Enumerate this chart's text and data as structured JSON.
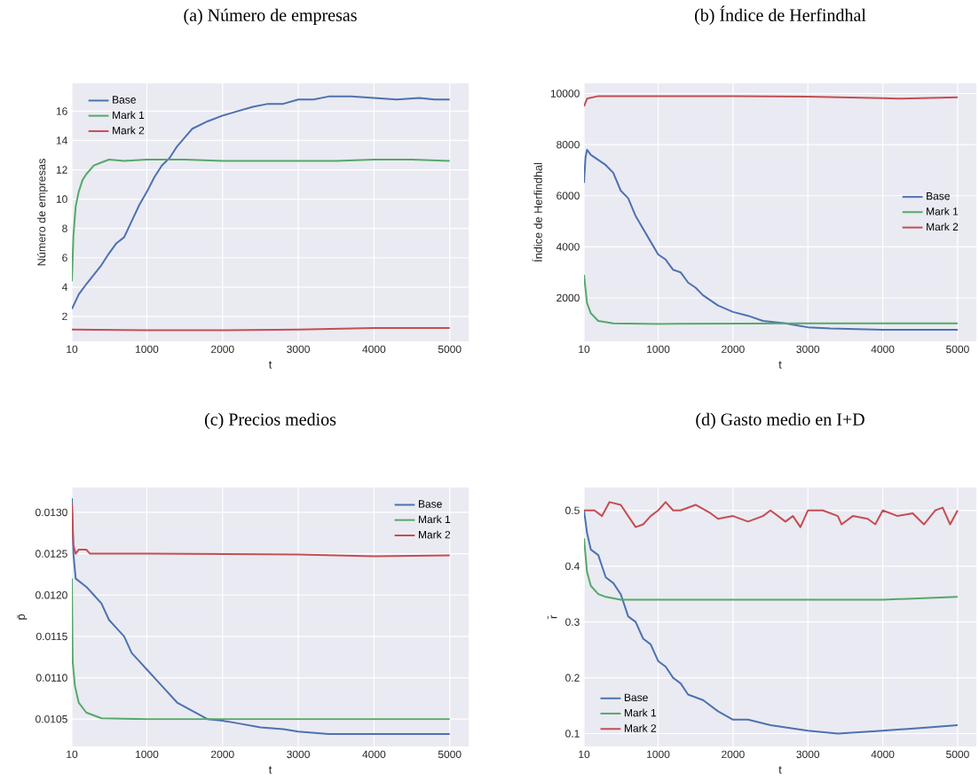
{
  "chart_data": [
    {
      "type": "line",
      "title": "(a) Número de empresas",
      "xlabel": "t",
      "ylabel": "Número de empresas",
      "xlim": [
        10,
        5250
      ],
      "ylim": [
        0.3,
        17.9
      ],
      "xticks": [
        10,
        1000,
        2000,
        3000,
        4000,
        5000
      ],
      "yticks": [
        2,
        4,
        6,
        8,
        10,
        12,
        14,
        16
      ],
      "grid": true,
      "legend": "top left",
      "series": [
        {
          "name": "Base",
          "color": "#4c72b0",
          "x": [
            10,
            100,
            200,
            400,
            500,
            600,
            700,
            800,
            900,
            1000,
            1100,
            1200,
            1300,
            1400,
            1500,
            1600,
            1800,
            2000,
            2200,
            2400,
            2600,
            2800,
            3000,
            3200,
            3400,
            3700,
            4000,
            4300,
            4600,
            4800,
            5000
          ],
          "values": [
            2.5,
            3.5,
            4.2,
            5.5,
            6.3,
            7.0,
            7.4,
            8.5,
            9.6,
            10.5,
            11.5,
            12.3,
            12.8,
            13.6,
            14.2,
            14.8,
            15.3,
            15.7,
            16.0,
            16.3,
            16.5,
            16.5,
            16.8,
            16.8,
            17.0,
            17.0,
            16.9,
            16.8,
            16.9,
            16.8,
            16.8
          ]
        },
        {
          "name": "Mark 1",
          "color": "#55a868",
          "x": [
            10,
            30,
            60,
            100,
            150,
            200,
            300,
            400,
            500,
            700,
            1000,
            1500,
            2000,
            2500,
            3000,
            3500,
            4000,
            4500,
            5000
          ],
          "values": [
            4.4,
            7.5,
            9.5,
            10.5,
            11.3,
            11.7,
            12.3,
            12.5,
            12.7,
            12.6,
            12.7,
            12.7,
            12.6,
            12.6,
            12.6,
            12.6,
            12.7,
            12.7,
            12.6
          ]
        },
        {
          "name": "Mark 2",
          "color": "#c44e52",
          "x": [
            10,
            1000,
            2000,
            3000,
            4000,
            4500,
            5000
          ],
          "values": [
            1.1,
            1.05,
            1.05,
            1.1,
            1.2,
            1.2,
            1.2
          ]
        }
      ]
    },
    {
      "type": "line",
      "title": "(b) Índice de Herfindhal",
      "xlabel": "t",
      "ylabel": "Índice de Herfindhal",
      "xlim": [
        10,
        5250
      ],
      "ylim": [
        300,
        10400
      ],
      "xticks": [
        10,
        1000,
        2000,
        3000,
        4000,
        5000
      ],
      "yticks": [
        2000,
        4000,
        6000,
        8000,
        10000
      ],
      "grid": true,
      "legend": "right",
      "series": [
        {
          "name": "Base",
          "color": "#4c72b0",
          "x": [
            10,
            30,
            50,
            100,
            200,
            300,
            400,
            500,
            600,
            700,
            800,
            900,
            1000,
            1100,
            1200,
            1300,
            1400,
            1500,
            1600,
            1700,
            1800,
            2000,
            2200,
            2400,
            2700,
            2900,
            3000,
            3300,
            4000,
            5000
          ],
          "values": [
            6500,
            7500,
            7800,
            7600,
            7400,
            7200,
            6900,
            6200,
            5900,
            5200,
            4700,
            4200,
            3700,
            3500,
            3100,
            3000,
            2600,
            2400,
            2100,
            1900,
            1700,
            1450,
            1300,
            1100,
            1000,
            900,
            850,
            800,
            750,
            750
          ]
        },
        {
          "name": "Mark 1",
          "color": "#55a868",
          "x": [
            10,
            50,
            100,
            200,
            400,
            1000,
            3000,
            5000
          ],
          "values": [
            2900,
            1800,
            1400,
            1100,
            1000,
            980,
            1000,
            1000
          ]
        },
        {
          "name": "Mark 2",
          "color": "#c44e52",
          "x": [
            10,
            50,
            200,
            1000,
            2000,
            3000,
            4000,
            4200,
            5000
          ],
          "values": [
            9500,
            9800,
            9900,
            9900,
            9900,
            9880,
            9820,
            9800,
            9850
          ]
        }
      ]
    },
    {
      "type": "line",
      "title": "(c) Precios medios",
      "xlabel": "t",
      "ylabel": "p̄",
      "xlim": [
        10,
        5250
      ],
      "ylim": [
        0.01017,
        0.0133
      ],
      "xticks": [
        10,
        1000,
        2000,
        3000,
        4000,
        5000
      ],
      "yticks": [
        0.0105,
        {
          "value": 0.011,
          "label": "0.0110"
        },
        0.0115,
        {
          "value": 0.012,
          "label": "0.0120"
        },
        0.0125,
        {
          "value": 0.013,
          "label": "0.0130"
        }
      ],
      "grid": true,
      "legend": "top right",
      "series": [
        {
          "name": "Base",
          "color": "#4c72b0",
          "x": [
            10,
            30,
            60,
            200,
            300,
            400,
            500,
            600,
            700,
            800,
            900,
            1000,
            1200,
            1400,
            1600,
            1800,
            2000,
            2200,
            2500,
            2800,
            3000,
            3400,
            5000
          ],
          "values": [
            0.01317,
            0.0125,
            0.0122,
            0.0121,
            0.012,
            0.0119,
            0.0117,
            0.0116,
            0.0115,
            0.0113,
            0.0112,
            0.0111,
            0.0109,
            0.0107,
            0.0106,
            0.0105,
            0.01048,
            0.01045,
            0.0104,
            0.01038,
            0.01035,
            0.01032,
            0.01032
          ]
        },
        {
          "name": "Mark 1",
          "color": "#55a868",
          "x": [
            10,
            20,
            50,
            100,
            200,
            400,
            1000,
            5000
          ],
          "values": [
            0.0122,
            0.0112,
            0.0109,
            0.0107,
            0.01058,
            0.01051,
            0.0105,
            0.0105
          ]
        },
        {
          "name": "Mark 2",
          "color": "#c44e52",
          "x": [
            10,
            30,
            60,
            100,
            200,
            250,
            1000,
            3000,
            4000,
            5000
          ],
          "values": [
            0.0131,
            0.0126,
            0.0125,
            0.01255,
            0.01255,
            0.0125,
            0.0125,
            0.01249,
            0.01247,
            0.01248
          ]
        }
      ]
    },
    {
      "type": "line",
      "title": "(d) Gasto medio en I+D",
      "xlabel": "t",
      "ylabel": "r̄",
      "xlim": [
        10,
        5250
      ],
      "ylim": [
        0.077,
        0.541
      ],
      "xticks": [
        10,
        1000,
        2000,
        3000,
        4000,
        5000
      ],
      "yticks": [
        0.1,
        0.2,
        0.3,
        0.4,
        0.5
      ],
      "grid": true,
      "legend": "bottom left",
      "series": [
        {
          "name": "Base",
          "color": "#4c72b0",
          "x": [
            10,
            50,
            100,
            200,
            250,
            300,
            400,
            500,
            600,
            700,
            800,
            900,
            1000,
            1100,
            1200,
            1300,
            1400,
            1600,
            1800,
            2000,
            2200,
            2500,
            3000,
            3400,
            4000,
            4500,
            5000
          ],
          "values": [
            0.5,
            0.46,
            0.43,
            0.42,
            0.4,
            0.38,
            0.37,
            0.35,
            0.31,
            0.3,
            0.27,
            0.26,
            0.23,
            0.22,
            0.2,
            0.19,
            0.17,
            0.16,
            0.14,
            0.125,
            0.125,
            0.115,
            0.105,
            0.1,
            0.105,
            0.11,
            0.115
          ]
        },
        {
          "name": "Mark 1",
          "color": "#55a868",
          "x": [
            10,
            50,
            100,
            200,
            300,
            500,
            1000,
            2000,
            3000,
            4000,
            5000
          ],
          "values": [
            0.45,
            0.39,
            0.365,
            0.35,
            0.345,
            0.34,
            0.34,
            0.34,
            0.34,
            0.34,
            0.345
          ]
        },
        {
          "name": "Mark 2",
          "color": "#c44e52",
          "x": [
            10,
            150,
            250,
            350,
            500,
            600,
            700,
            800,
            900,
            1000,
            1100,
            1200,
            1300,
            1500,
            1700,
            1800,
            2000,
            2200,
            2400,
            2500,
            2700,
            2800,
            2900,
            3000,
            3200,
            3400,
            3450,
            3600,
            3800,
            3900,
            4000,
            4200,
            4400,
            4550,
            4700,
            4800,
            4900,
            5000
          ],
          "values": [
            0.5,
            0.5,
            0.49,
            0.515,
            0.51,
            0.49,
            0.47,
            0.475,
            0.49,
            0.5,
            0.515,
            0.5,
            0.5,
            0.51,
            0.495,
            0.485,
            0.49,
            0.48,
            0.49,
            0.5,
            0.48,
            0.49,
            0.47,
            0.5,
            0.5,
            0.49,
            0.475,
            0.49,
            0.485,
            0.475,
            0.5,
            0.49,
            0.495,
            0.475,
            0.5,
            0.505,
            0.475,
            0.5
          ]
        }
      ]
    }
  ]
}
